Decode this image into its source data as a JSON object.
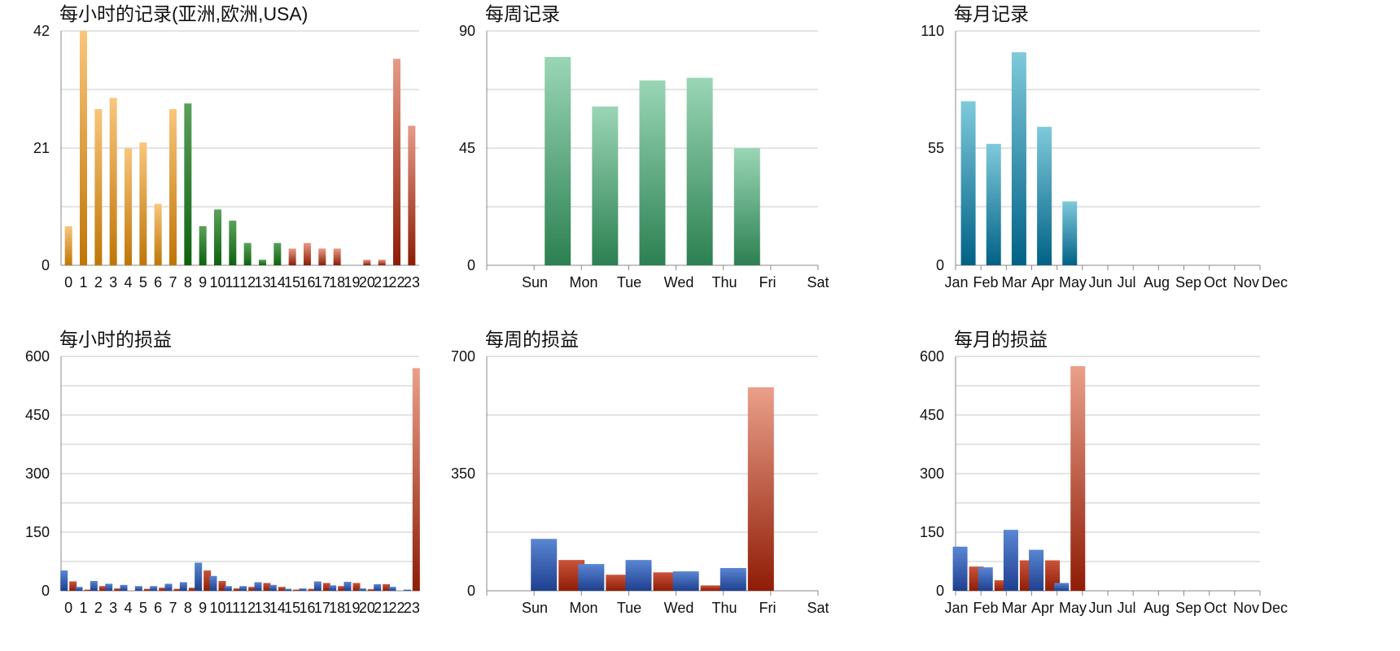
{
  "colors": {
    "hour_asia": [
      "#f9c67d",
      "#bf7606"
    ],
    "hour_europe": [
      "#5aa05a",
      "#0d6210"
    ],
    "hour_usa": [
      "#e79a88",
      "#8d1d05"
    ],
    "week_records": [
      "#9ad6b6",
      "#2c8051"
    ],
    "month_records": [
      "#7fcadb",
      "#006186"
    ],
    "series_blue": [
      "#5a86d2",
      "#1e3f8f"
    ],
    "series_red": [
      "#c9543a",
      "#8f1c06"
    ],
    "series_red_highlight": [
      "#eaa08a",
      "#8f1c06"
    ]
  },
  "chart_data": [
    {
      "id": "hourly-records",
      "type": "bar",
      "title": "每小时的记录(亚洲,欧洲,USA)",
      "categories": [
        "0",
        "1",
        "2",
        "3",
        "4",
        "5",
        "6",
        "7",
        "8",
        "9",
        "10",
        "11",
        "12",
        "13",
        "14",
        "15",
        "16",
        "17",
        "18",
        "19",
        "20",
        "21",
        "22",
        "23"
      ],
      "ylim": [
        0,
        42
      ],
      "yticks": [
        0,
        21,
        42
      ],
      "series": [
        {
          "values": [
            7,
            42,
            28,
            30,
            21,
            22,
            11,
            28,
            29,
            7,
            10,
            8,
            4,
            1,
            4,
            3,
            4,
            3,
            3,
            0,
            1,
            1,
            37,
            25
          ]
        }
      ],
      "category_colors": [
        "hour_asia",
        "hour_asia",
        "hour_asia",
        "hour_asia",
        "hour_asia",
        "hour_asia",
        "hour_asia",
        "hour_asia",
        "hour_europe",
        "hour_europe",
        "hour_europe",
        "hour_europe",
        "hour_europe",
        "hour_europe",
        "hour_europe",
        "hour_usa",
        "hour_usa",
        "hour_usa",
        "hour_usa",
        "hour_usa",
        "hour_usa",
        "hour_usa",
        "hour_usa",
        "hour_usa"
      ]
    },
    {
      "id": "weekly-records",
      "type": "bar",
      "title": "每周记录",
      "categories": [
        "Sun",
        "Mon",
        "Tue",
        "Wed",
        "Thu",
        "Fri",
        "Sat"
      ],
      "ylim": [
        0,
        90
      ],
      "yticks": [
        0,
        45,
        90
      ],
      "series": [
        {
          "values": [
            0,
            80,
            61,
            71,
            72,
            45,
            0
          ]
        }
      ],
      "color": "week_records"
    },
    {
      "id": "monthly-records",
      "type": "bar",
      "title": "每月记录",
      "categories": [
        "Jan",
        "Feb",
        "Mar",
        "Apr",
        "May",
        "Jun",
        "Jul",
        "Aug",
        "Sep",
        "Oct",
        "Nov",
        "Dec"
      ],
      "ylim": [
        0,
        110
      ],
      "yticks": [
        0,
        55,
        110
      ],
      "series": [
        {
          "values": [
            77,
            57,
            100,
            65,
            30,
            0,
            0,
            0,
            0,
            0,
            0,
            0
          ]
        }
      ],
      "color": "month_records"
    },
    {
      "id": "hourly-pnl",
      "type": "bar",
      "title": "每小时的损益",
      "categories": [
        "0",
        "1",
        "2",
        "3",
        "4",
        "5",
        "6",
        "7",
        "8",
        "9",
        "10",
        "11",
        "12",
        "13",
        "14",
        "15",
        "16",
        "17",
        "18",
        "19",
        "20",
        "21",
        "22",
        "23"
      ],
      "ylim": [
        0,
        600
      ],
      "yticks": [
        0,
        150,
        300,
        450,
        600
      ],
      "series": [
        {
          "values": [
            52,
            10,
            25,
            18,
            15,
            12,
            12,
            18,
            22,
            72,
            38,
            12,
            12,
            22,
            15,
            5,
            6,
            24,
            14,
            23,
            6,
            17,
            10,
            3
          ]
        },
        {
          "values": [
            24,
            3,
            12,
            6,
            0,
            5,
            8,
            5,
            8,
            52,
            25,
            6,
            10,
            20,
            10,
            3,
            5,
            20,
            12,
            20,
            4,
            17,
            0,
            570
          ]
        }
      ],
      "series_colors": [
        "series_blue",
        "series_red"
      ],
      "highlight": {
        "series": 1,
        "index": 23,
        "color": "series_red_highlight"
      }
    },
    {
      "id": "weekly-pnl",
      "type": "bar",
      "title": "每周的损益",
      "categories": [
        "Sun",
        "Mon",
        "Tue",
        "Wed",
        "Thu",
        "Fri",
        "Sat"
      ],
      "ylim": [
        0,
        700
      ],
      "yticks": [
        0,
        350,
        700
      ],
      "series": [
        {
          "values": [
            0,
            155,
            80,
            92,
            58,
            68,
            0
          ]
        },
        {
          "values": [
            0,
            92,
            48,
            55,
            16,
            608,
            0
          ]
        }
      ],
      "series_colors": [
        "series_blue",
        "series_red"
      ],
      "highlight": {
        "series": 1,
        "index": 5,
        "color": "series_red_highlight"
      }
    },
    {
      "id": "monthly-pnl",
      "type": "bar",
      "title": "每月的损益",
      "categories": [
        "Jan",
        "Feb",
        "Mar",
        "Apr",
        "May",
        "Jun",
        "Jul",
        "Aug",
        "Sep",
        "Oct",
        "Nov",
        "Dec"
      ],
      "ylim": [
        0,
        600
      ],
      "yticks": [
        0,
        150,
        300,
        450,
        600
      ],
      "series": [
        {
          "values": [
            113,
            60,
            156,
            105,
            20,
            0,
            0,
            0,
            0,
            0,
            0,
            0
          ]
        },
        {
          "values": [
            62,
            27,
            78,
            78,
            575,
            0,
            0,
            0,
            0,
            0,
            0,
            0
          ]
        }
      ],
      "series_colors": [
        "series_blue",
        "series_red"
      ],
      "highlight": {
        "series": 1,
        "index": 4,
        "color": "series_red_highlight"
      }
    }
  ]
}
